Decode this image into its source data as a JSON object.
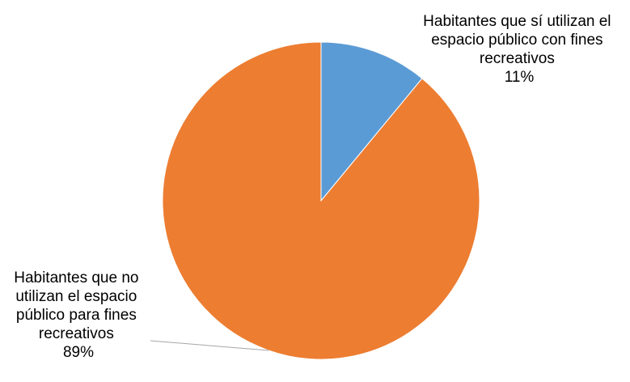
{
  "chart_data": {
    "type": "pie",
    "slices": [
      {
        "label": "Habitantes que sí utilizan el espacio público con fines recreativos",
        "label_lines": [
          "Habitantes que sí utilizan el",
          "espacio público con fines",
          "recreativos"
        ],
        "value": 11,
        "value_label": "11%",
        "color": "#5b9bd5"
      },
      {
        "label": "Habitantes que no utilizan el espacio público para fines recreativos",
        "label_lines": [
          "Habitantes que no",
          "utilizan el espacio",
          "público para fines",
          "recreativos"
        ],
        "value": 89,
        "value_label": "89%",
        "color": "#ed7d31"
      }
    ],
    "start_angle": "12 o'clock",
    "direction": "clockwise",
    "legend": "none"
  }
}
